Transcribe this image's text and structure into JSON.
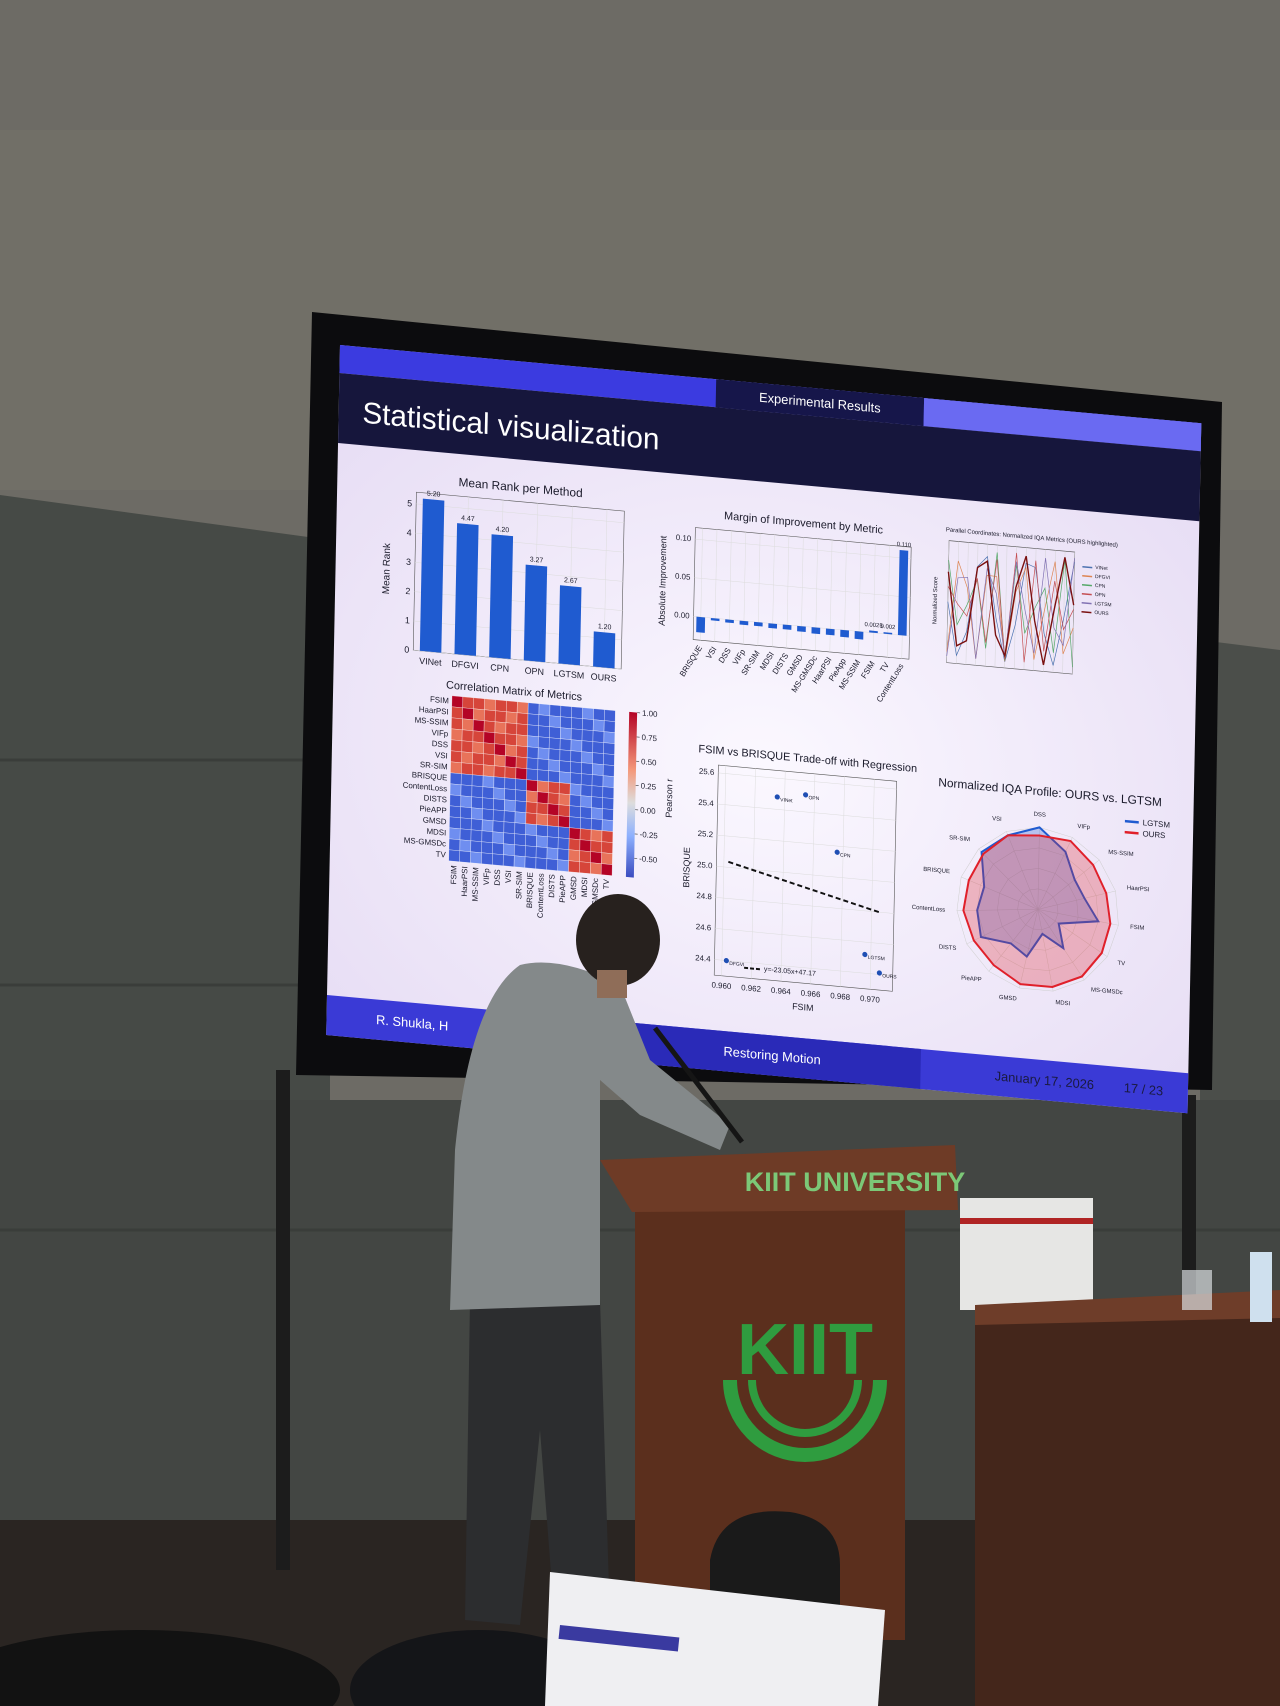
{
  "slide": {
    "section": "Experimental Results",
    "title": "Statistical visualization",
    "footer_author": "R. Shukla, H",
    "footer_title": "Restoring Motion",
    "footer_date": "January 17, 2026",
    "footer_page": "17 / 23"
  },
  "podium": {
    "label": "KIIT UNIVERSITY",
    "logo": "KIIT"
  },
  "chart_data": [
    {
      "type": "bar",
      "title": "Mean Rank per Method",
      "ylabel": "Mean Rank",
      "categories": [
        "VINet",
        "DFGVI",
        "CPN",
        "OPN",
        "LGTSM",
        "OURS"
      ],
      "values": [
        5.2,
        4.47,
        4.2,
        3.27,
        2.67,
        1.2
      ],
      "value_labels": [
        "5.20",
        "4.47",
        "4.20",
        "3.27",
        "2.67",
        "1.20"
      ],
      "color": "#1f5bd0",
      "ylim": [
        0,
        5.4
      ],
      "yticks": [
        0,
        1,
        2,
        3,
        4,
        5
      ],
      "grid": true
    },
    {
      "type": "bar",
      "title": "Margin of Improvement by Metric",
      "ylabel": "Absolute Improvement",
      "categories": [
        "BRISQUE",
        "VSI",
        "DSS",
        "VIFp",
        "SR-SIM",
        "MDSI",
        "DISTS",
        "GMSD",
        "MS-GMSDc",
        "HaarPSI",
        "PieApp",
        "MS-SSIM",
        "FSIM",
        "TV",
        "ContentLoss"
      ],
      "values": [
        -0.02,
        -0.003,
        -0.004,
        -0.005,
        -0.005,
        -0.006,
        -0.006,
        -0.007,
        -0.008,
        -0.008,
        -0.009,
        -0.01,
        0.0025,
        0.002,
        0.11
      ],
      "value_labels": [
        null,
        null,
        null,
        null,
        null,
        null,
        null,
        null,
        null,
        null,
        null,
        null,
        "0.0025",
        "0.002",
        "0.110"
      ],
      "color": "#1f5bd0",
      "ylim": [
        -0.03,
        0.115
      ],
      "yticks": [
        {
          "value": 0,
          "label": "0.00"
        },
        0.05,
        {
          "value": 0.1,
          "label": "0.10"
        }
      ],
      "grid": true
    },
    {
      "type": "heatmap",
      "title": "Correlation Matrix of Metrics",
      "labels": [
        "FSIM",
        "HaarPSI",
        "MS-SSIM",
        "VIFp",
        "DSS",
        "VSI",
        "SR-SIM",
        "BRISQUE",
        "ContentLoss",
        "DISTS",
        "PieAPP",
        "GMSD",
        "MDSI",
        "MS-GMSDc",
        "TV"
      ],
      "colorbar_label": "Pearson r",
      "clim": [
        -0.7,
        1
      ],
      "colorbar_ticks": [
        {
          "value": 1,
          "label": "1.00"
        },
        0.75,
        {
          "value": 0.5,
          "label": "0.50"
        },
        0.25,
        {
          "value": 0,
          "label": "0.00"
        },
        -0.25,
        {
          "value": -0.5,
          "label": "-0.50"
        }
      ]
    },
    {
      "type": "parallel",
      "title": "Parallel Coordinates: Normalized IQA Metrics (OURS highlighted)",
      "ylabel": "Normalized Score",
      "series": [
        {
          "name": "VINet",
          "color": "#4c72b0"
        },
        {
          "name": "DFGVI",
          "color": "#dd8452"
        },
        {
          "name": "CPN",
          "color": "#55a868"
        },
        {
          "name": "OPN",
          "color": "#c44e52"
        },
        {
          "name": "LGTSM",
          "color": "#8172b3"
        },
        {
          "name": "OURS",
          "color": "#7a1010"
        }
      ]
    },
    {
      "type": "scatter",
      "title": "FSIM vs BRISQUE Trade-off with Regression",
      "xlabel": "FSIM",
      "ylabel": "BRISQUE",
      "color": "#1f4fb4",
      "points": [
        {
          "name": "VINet",
          "x": 0.9635,
          "y": 25.48
        },
        {
          "name": "OPN",
          "x": 0.9654,
          "y": 25.51
        },
        {
          "name": "CPN",
          "x": 0.9676,
          "y": 25.16
        },
        {
          "name": "LGTSM",
          "x": 0.9696,
          "y": 24.52
        },
        {
          "name": "OURS",
          "x": 0.9706,
          "y": 24.41
        },
        {
          "name": "DFGVI",
          "x": 0.9603,
          "y": 24.4
        }
      ],
      "regression": {
        "label": "y=-23.05x+47.17",
        "slope": -23.05,
        "intercept": 47.17
      },
      "xlim": [
        0.9595,
        0.9715
      ],
      "ylim": [
        24.3,
        25.65
      ],
      "xticks": [
        {
          "value": 0.96,
          "label": "0.960"
        },
        0.962,
        0.964,
        0.966,
        0.968,
        {
          "value": 0.97,
          "label": "0.970"
        }
      ],
      "yticks": [
        24.4,
        24.6,
        24.8,
        {
          "value": 25,
          "label": "25.0"
        },
        25.2,
        25.4,
        25.6
      ],
      "grid": true
    },
    {
      "type": "radar",
      "title": "Normalized IQA Profile: OURS vs. LGTSM",
      "categories": [
        "DSS",
        "VIFp",
        "MS-SSIM",
        "HaarPSI",
        "FSIM",
        "TV",
        "MS-GMSDc",
        "MDSI",
        "GMSD",
        "PieAPP",
        "DISTS",
        "ContentLoss",
        "BRISQUE",
        "SR-SIM",
        "VSI"
      ],
      "ylim": [
        0,
        1
      ],
      "series": [
        {
          "name": "LGTSM",
          "color": "#1f5bd0",
          "values": [
            1,
            0.8,
            0.6,
            0.6,
            0.75,
            0.3,
            0.55,
            0.3,
            0.6,
            0.55,
            0.8,
            0.75,
            0.7,
            0.95,
            0.95
          ]
        },
        {
          "name": "OURS",
          "color": "#e0202a",
          "values": [
            0.9,
            0.95,
            0.9,
            0.88,
            0.9,
            0.92,
            0.95,
            0.95,
            0.95,
            0.9,
            0.9,
            0.92,
            0.9,
            0.92,
            0.95
          ]
        }
      ]
    }
  ]
}
